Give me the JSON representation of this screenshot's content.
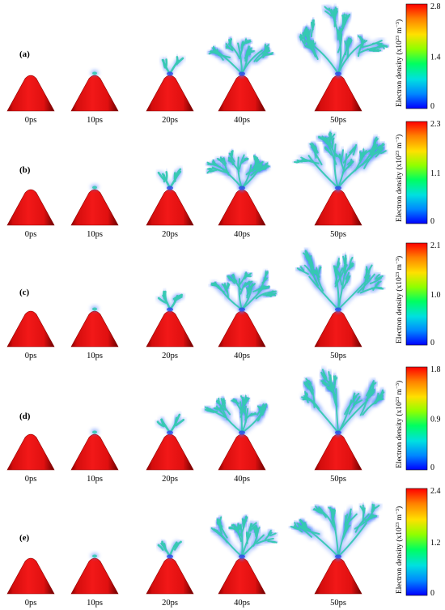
{
  "figure": {
    "colors": {
      "cone": "#e01010",
      "cone_dark": "#8a0000",
      "streamer_core": "#36c9b2",
      "streamer_glow": "#4a7dff",
      "streamer_tip": "#2c47e6",
      "colorbar_stops": [
        "#0000ff",
        "#00aaff",
        "#00e8d0",
        "#00ff40",
        "#b8ff00",
        "#ffd000",
        "#ff7000",
        "#ff0000"
      ]
    },
    "panels": [
      {
        "label": "(a)",
        "times": [
          "0ps",
          "10ps",
          "20ps",
          "40ps",
          "50ps"
        ],
        "colorbar": {
          "max": "2.8",
          "mid": "1.4",
          "min": "0",
          "title": "Electron density (x10",
          "exponent": "23",
          "unit": " m",
          "unit_exponent": "−3",
          "close": ")"
        }
      },
      {
        "label": "(b)",
        "times": [
          "0ps",
          "10ps",
          "20ps",
          "40ps",
          "50ps"
        ],
        "colorbar": {
          "max": "2.3",
          "mid": "1.1",
          "min": "0",
          "title": "Electron density (x10",
          "exponent": "23",
          "unit": " m",
          "unit_exponent": "−3",
          "close": ")"
        }
      },
      {
        "label": "(c)",
        "times": [
          "0ps",
          "10ps",
          "20ps",
          "40ps",
          "50ps"
        ],
        "colorbar": {
          "max": "2.1",
          "mid": "1.0",
          "min": "0",
          "title": "Electron density (x10",
          "exponent": "23",
          "unit": " m",
          "unit_exponent": "−3",
          "close": ")"
        }
      },
      {
        "label": "(d)",
        "times": [
          "0ps",
          "10ps",
          "20ps",
          "40ps",
          "50ps"
        ],
        "colorbar": {
          "max": "1.8",
          "mid": "0.9",
          "min": "0",
          "title": "Electron density (x10",
          "exponent": "23",
          "unit": " m",
          "unit_exponent": "−3",
          "close": ")"
        }
      },
      {
        "label": "(e)",
        "times": [
          "0ps",
          "10ps",
          "20ps",
          "40ps",
          "50ps"
        ],
        "colorbar": {
          "max": "2.4",
          "mid": "1.2",
          "min": "0",
          "title": "Electron density (x10",
          "exponent": "23",
          "unit": " m",
          "unit_exponent": "−3",
          "close": ")"
        }
      }
    ]
  }
}
